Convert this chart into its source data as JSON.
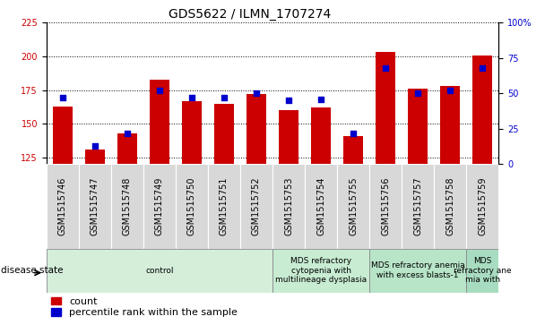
{
  "title": "GDS5622 / ILMN_1707274",
  "samples": [
    "GSM1515746",
    "GSM1515747",
    "GSM1515748",
    "GSM1515749",
    "GSM1515750",
    "GSM1515751",
    "GSM1515752",
    "GSM1515753",
    "GSM1515754",
    "GSM1515755",
    "GSM1515756",
    "GSM1515757",
    "GSM1515758",
    "GSM1515759"
  ],
  "counts": [
    163,
    131,
    143,
    183,
    167,
    165,
    172,
    160,
    162,
    141,
    203,
    176,
    178,
    201
  ],
  "percentile_ranks": [
    47,
    13,
    22,
    52,
    47,
    47,
    50,
    45,
    46,
    22,
    68,
    50,
    52,
    68
  ],
  "ylim_left": [
    120,
    225
  ],
  "ylim_right": [
    0,
    100
  ],
  "yticks_left": [
    125,
    150,
    175,
    200,
    225
  ],
  "yticks_right": [
    0,
    25,
    50,
    75,
    100
  ],
  "bar_color": "#cc0000",
  "dot_color": "#0000cc",
  "bar_width": 0.6,
  "dot_size": 18,
  "background_color": "#ffffff",
  "disease_groups": [
    {
      "label": "control",
      "start": 0,
      "end": 6,
      "color": "#d4eeda"
    },
    {
      "label": "MDS refractory\ncytopenia with\nmultilineage dysplasia",
      "start": 7,
      "end": 9,
      "color": "#c8ecd2"
    },
    {
      "label": "MDS refractory anemia\nwith excess blasts-1",
      "start": 10,
      "end": 12,
      "color": "#b8e4c8"
    },
    {
      "label": "MDS\nrefractory ane\nmia with",
      "start": 13,
      "end": 13,
      "color": "#a8dcc0"
    }
  ],
  "disease_state_label": "disease state",
  "legend_count_label": "count",
  "legend_pct_label": "percentile rank within the sample",
  "tick_label_color_left": "#cc0000",
  "tick_label_color_right": "#0000cc",
  "title_fontsize": 10,
  "axis_fontsize": 7,
  "sample_label_fontsize": 7,
  "disease_fontsize": 6.5,
  "label_fontsize": 8
}
